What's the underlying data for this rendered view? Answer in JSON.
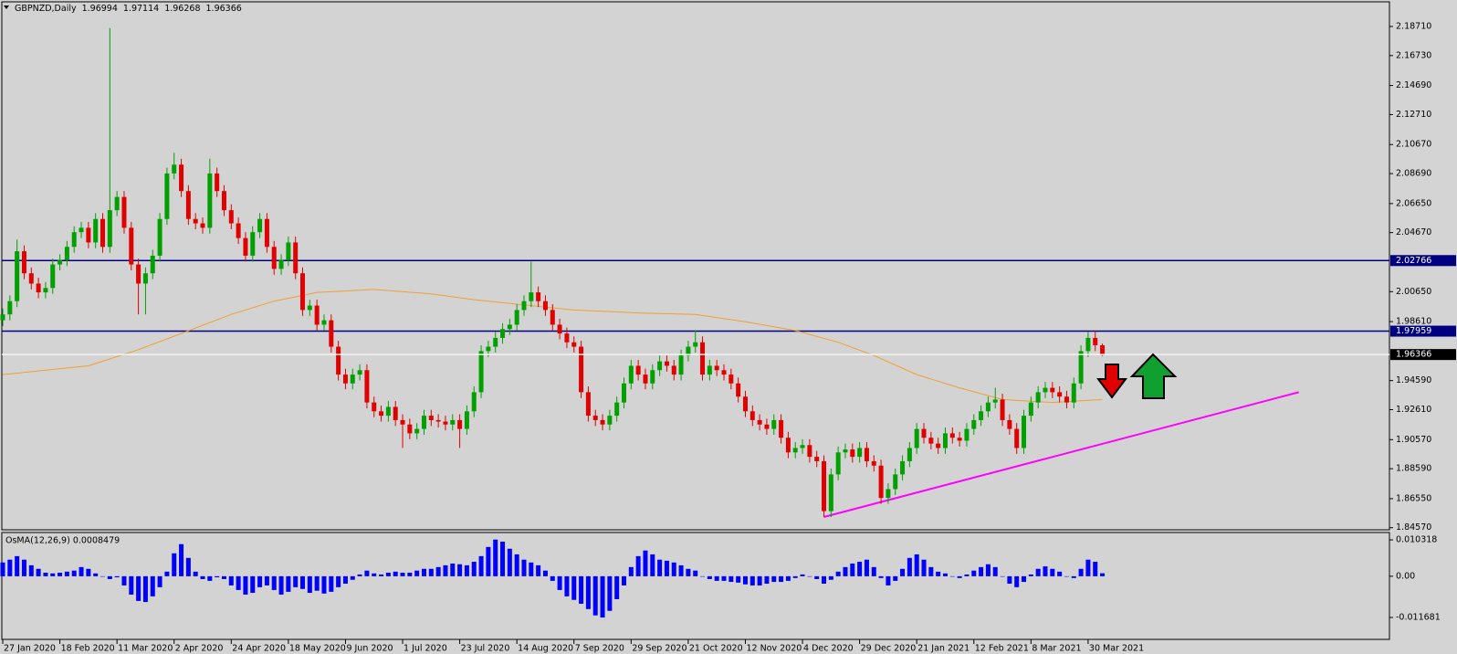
{
  "chart_data": [
    {
      "type": "candlestick",
      "title": "GBPNZD,Daily",
      "open": [
        1.987,
        1.991,
        2.0,
        2.034,
        2.019,
        2.012,
        2.006,
        2.009,
        2.025,
        2.028,
        2.037,
        2.047,
        2.05,
        2.04,
        2.056,
        2.037,
        2.062,
        2.071,
        2.05,
        2.025,
        2.012,
        2.019,
        2.031,
        2.056,
        2.087,
        2.093,
        2.075,
        2.056,
        2.053,
        2.05,
        2.087,
        2.075,
        2.062,
        2.053,
        2.043,
        2.031,
        2.047,
        2.056,
        2.037,
        2.022,
        2.028,
        2.04,
        2.019,
        1.994,
        1.997,
        1.984,
        1.987,
        1.969,
        1.95,
        1.944,
        1.95,
        1.953,
        1.931,
        1.925,
        1.922,
        1.928,
        1.919,
        1.916,
        1.91,
        1.913,
        1.922,
        1.919,
        1.918,
        1.916,
        1.919,
        1.913,
        1.925,
        1.938,
        1.966,
        1.969,
        1.975,
        1.981,
        1.984,
        1.994,
        2.0,
        2.006,
        2.0,
        1.994,
        1.984,
        1.978,
        1.972,
        1.969,
        1.938,
        1.922,
        1.919,
        1.916,
        1.922,
        1.931,
        1.944,
        1.956,
        1.95,
        1.944,
        1.953,
        1.959,
        1.956,
        1.95,
        1.963,
        1.969,
        1.972,
        1.95,
        1.956,
        1.953,
        1.95,
        1.944,
        1.935,
        1.925,
        1.919,
        1.916,
        1.913,
        1.919,
        1.907,
        1.897,
        1.9,
        1.902,
        1.894,
        1.891,
        1.857,
        1.882,
        1.897,
        1.899,
        1.894,
        1.9,
        1.891,
        1.888,
        1.866,
        1.872,
        1.882,
        1.891,
        1.9,
        1.913,
        1.907,
        1.903,
        1.9,
        1.91,
        1.907,
        1.905,
        1.913,
        1.919,
        1.925,
        1.931,
        1.933,
        1.919,
        1.913,
        1.9,
        1.922,
        1.931,
        1.938,
        1.941,
        1.938,
        1.935,
        1.931,
        1.944,
        1.966,
        1.975,
        1.96994
      ],
      "high": [
        1.995,
        2.004,
        2.042,
        2.038,
        2.023,
        2.016,
        2.013,
        2.029,
        2.032,
        2.041,
        2.051,
        2.054,
        2.054,
        2.06,
        2.06,
        2.186,
        2.075,
        2.075,
        2.054,
        2.029,
        2.023,
        2.035,
        2.06,
        2.091,
        2.101,
        2.097,
        2.079,
        2.06,
        2.057,
        2.097,
        2.091,
        2.079,
        2.066,
        2.057,
        2.047,
        2.051,
        2.06,
        2.06,
        2.041,
        2.032,
        2.044,
        2.044,
        2.023,
        2.001,
        2.001,
        1.991,
        1.991,
        1.973,
        1.954,
        1.954,
        1.957,
        1.957,
        1.935,
        1.929,
        1.932,
        1.932,
        1.923,
        1.92,
        1.917,
        1.926,
        1.926,
        1.923,
        1.922,
        1.923,
        1.923,
        1.929,
        1.942,
        1.97,
        1.973,
        1.979,
        1.985,
        1.988,
        1.998,
        2.004,
        2.027,
        2.01,
        2.004,
        1.998,
        1.988,
        1.982,
        1.976,
        1.973,
        1.942,
        1.926,
        1.923,
        1.926,
        1.935,
        1.948,
        1.96,
        1.96,
        1.954,
        1.957,
        1.963,
        1.963,
        1.96,
        1.967,
        1.973,
        1.98,
        1.976,
        1.96,
        1.96,
        1.957,
        1.954,
        1.948,
        1.939,
        1.929,
        1.923,
        1.92,
        1.923,
        1.923,
        1.911,
        1.904,
        1.906,
        1.906,
        1.898,
        1.895,
        1.886,
        1.901,
        1.903,
        1.903,
        1.904,
        1.904,
        1.895,
        1.892,
        1.876,
        1.886,
        1.895,
        1.904,
        1.917,
        1.917,
        1.911,
        1.907,
        1.914,
        1.914,
        1.911,
        1.917,
        1.923,
        1.929,
        1.935,
        1.941,
        1.937,
        1.923,
        1.917,
        1.926,
        1.935,
        1.942,
        1.945,
        1.945,
        1.942,
        1.939,
        1.948,
        1.97,
        1.979,
        1.98,
        1.97114
      ],
      "low": [
        1.983,
        1.987,
        1.996,
        2.015,
        2.008,
        2.002,
        2.002,
        2.005,
        2.021,
        2.024,
        2.033,
        2.043,
        2.036,
        2.036,
        2.033,
        2.033,
        2.058,
        2.046,
        2.021,
        1.991,
        1.991,
        2.015,
        2.027,
        2.052,
        2.083,
        2.071,
        2.052,
        2.049,
        2.046,
        2.046,
        2.071,
        2.058,
        2.049,
        2.039,
        2.027,
        2.027,
        2.043,
        2.033,
        2.018,
        2.018,
        2.024,
        2.015,
        1.99,
        1.99,
        1.98,
        1.98,
        1.965,
        1.946,
        1.94,
        1.94,
        1.946,
        1.927,
        1.921,
        1.918,
        1.918,
        1.915,
        1.9,
        1.906,
        1.906,
        1.909,
        1.915,
        1.914,
        1.912,
        1.912,
        1.9,
        1.909,
        1.921,
        1.934,
        1.962,
        1.965,
        1.971,
        1.977,
        1.98,
        1.99,
        1.996,
        1.996,
        1.99,
        1.98,
        1.974,
        1.968,
        1.965,
        1.934,
        1.918,
        1.915,
        1.912,
        1.912,
        1.918,
        1.927,
        1.94,
        1.946,
        1.94,
        1.94,
        1.949,
        1.952,
        1.946,
        1.946,
        1.959,
        1.965,
        1.946,
        1.946,
        1.949,
        1.946,
        1.94,
        1.931,
        1.921,
        1.915,
        1.912,
        1.909,
        1.909,
        1.903,
        1.893,
        1.893,
        1.896,
        1.89,
        1.887,
        1.853,
        1.853,
        1.878,
        1.893,
        1.89,
        1.89,
        1.887,
        1.884,
        1.862,
        1.862,
        1.868,
        1.878,
        1.887,
        1.896,
        1.903,
        1.899,
        1.896,
        1.896,
        1.903,
        1.901,
        1.901,
        1.909,
        1.915,
        1.921,
        1.927,
        1.915,
        1.909,
        1.896,
        1.896,
        1.918,
        1.927,
        1.934,
        1.934,
        1.931,
        1.927,
        1.927,
        1.94,
        1.962,
        1.966,
        1.96268
      ],
      "close": [
        1.991,
        2.0,
        2.034,
        2.019,
        2.012,
        2.006,
        2.009,
        2.025,
        2.028,
        2.037,
        2.047,
        2.05,
        2.04,
        2.056,
        2.037,
        2.062,
        2.071,
        2.05,
        2.025,
        2.012,
        2.019,
        2.031,
        2.056,
        2.087,
        2.093,
        2.075,
        2.056,
        2.053,
        2.05,
        2.087,
        2.075,
        2.062,
        2.053,
        2.043,
        2.031,
        2.047,
        2.056,
        2.037,
        2.022,
        2.028,
        2.04,
        2.019,
        1.994,
        1.997,
        1.984,
        1.987,
        1.969,
        1.95,
        1.944,
        1.95,
        1.953,
        1.931,
        1.925,
        1.922,
        1.928,
        1.919,
        1.916,
        1.91,
        1.913,
        1.922,
        1.919,
        1.918,
        1.916,
        1.919,
        1.913,
        1.925,
        1.938,
        1.966,
        1.969,
        1.975,
        1.981,
        1.984,
        1.994,
        2.0,
        2.006,
        2.0,
        1.994,
        1.984,
        1.978,
        1.972,
        1.969,
        1.938,
        1.922,
        1.919,
        1.916,
        1.922,
        1.931,
        1.944,
        1.956,
        1.95,
        1.944,
        1.953,
        1.959,
        1.956,
        1.95,
        1.963,
        1.969,
        1.972,
        1.95,
        1.956,
        1.953,
        1.95,
        1.944,
        1.935,
        1.925,
        1.919,
        1.916,
        1.913,
        1.919,
        1.907,
        1.897,
        1.9,
        1.902,
        1.894,
        1.891,
        1.857,
        1.882,
        1.897,
        1.899,
        1.894,
        1.9,
        1.891,
        1.888,
        1.866,
        1.872,
        1.882,
        1.891,
        1.9,
        1.913,
        1.907,
        1.903,
        1.9,
        1.91,
        1.907,
        1.905,
        1.913,
        1.919,
        1.925,
        1.931,
        1.933,
        1.919,
        1.913,
        1.9,
        1.922,
        1.931,
        1.938,
        1.941,
        1.938,
        1.935,
        1.931,
        1.944,
        1.966,
        1.975,
        1.97,
        1.96366
      ],
      "up_color": "#00a000",
      "down_color": "#e00000",
      "wick_color": "#006000",
      "xlim": [
        0,
        194.2
      ],
      "xticks": [
        {
          "value": 0,
          "label": "27 Jan 2020"
        },
        {
          "value": 8,
          "label": "18 Feb 2020"
        },
        {
          "value": 16,
          "label": "11 Mar 2020"
        },
        {
          "value": 24,
          "label": "2 Apr 2020"
        },
        {
          "value": 32,
          "label": "24 Apr 2020"
        },
        {
          "value": 40,
          "label": "18 May 2020"
        },
        {
          "value": 48,
          "label": "9 Jun 2020"
        },
        {
          "value": 56,
          "label": "1 Jul 2020"
        },
        {
          "value": 64,
          "label": "23 Jul 2020"
        },
        {
          "value": 72,
          "label": "14 Aug 2020"
        },
        {
          "value": 80,
          "label": "7 Sep 2020"
        },
        {
          "value": 88,
          "label": "29 Sep 2020"
        },
        {
          "value": 96,
          "label": "21 Oct 2020"
        },
        {
          "value": 104,
          "label": "12 Nov 2020"
        },
        {
          "value": 112,
          "label": "4 Dec 2020"
        },
        {
          "value": 120,
          "label": "29 Dec 2020"
        },
        {
          "value": 128,
          "label": "21 Jan 2021"
        },
        {
          "value": 136,
          "label": "12 Feb 2021"
        },
        {
          "value": 144,
          "label": "8 Mar 2021"
        },
        {
          "value": 152,
          "label": "30 Mar 2021"
        }
      ],
      "ylim": [
        1.8443,
        2.2039
      ],
      "yticks": [
        {
          "value": 2.1871,
          "label": "2.18710"
        },
        {
          "value": 2.1673,
          "label": "2.16730"
        },
        {
          "value": 2.1469,
          "label": "2.14690"
        },
        {
          "value": 2.1271,
          "label": "2.12710"
        },
        {
          "value": 2.1067,
          "label": "2.10670"
        },
        {
          "value": 2.0869,
          "label": "2.08690"
        },
        {
          "value": 2.0665,
          "label": "2.06650"
        },
        {
          "value": 2.0467,
          "label": "2.04670"
        },
        {
          "value": 2.0065,
          "label": "2.00650"
        },
        {
          "value": 1.9861,
          "label": "1.98610"
        },
        {
          "value": 1.9459,
          "label": "1.94590"
        },
        {
          "value": 1.9261,
          "label": "1.92610"
        },
        {
          "value": 1.9057,
          "label": "1.90570"
        },
        {
          "value": 1.8859,
          "label": "1.88590"
        },
        {
          "value": 1.8655,
          "label": "1.86550"
        },
        {
          "value": 1.8457,
          "label": "1.84570"
        }
      ],
      "levels": [
        {
          "value": 2.02766,
          "color": "#000080"
        },
        {
          "value": 1.97959,
          "color": "#000080"
        }
      ],
      "last_price_color": "#f4f4f4",
      "ma": {
        "x": [
          0,
          12,
          19,
          25,
          32,
          38,
          44,
          52,
          60,
          66,
          72,
          80,
          89,
          97,
          104,
          111,
          117,
          122,
          128,
          134,
          140,
          147,
          154
        ],
        "values": [
          1.95,
          1.956,
          1.967,
          1.978,
          1.991,
          2.0,
          2.006,
          2.008,
          2.005,
          2.001,
          1.998,
          1.994,
          1.992,
          1.991,
          1.986,
          1.98,
          1.972,
          1.963,
          1.95,
          1.941,
          1.933,
          1.931,
          1.933
        ],
        "color": "#f0a030"
      },
      "trendline": {
        "x": [
          115,
          181.5
        ],
        "values": [
          1.853,
          1.938
        ],
        "color": "#ff00ff"
      }
    },
    {
      "type": "bar",
      "title": "OsMA(12,26,9) 0.0008479",
      "color": "#0000ff",
      "values": [
        0.0039,
        0.0047,
        0.0057,
        0.0047,
        0.0031,
        0.0021,
        0.001,
        0.0008,
        0.001,
        0.0013,
        0.0016,
        0.0026,
        0.0021,
        0.0008,
        0,
        -0.0008,
        -0.0003,
        -0.0026,
        -0.0052,
        -0.007,
        -0.0073,
        -0.0057,
        -0.0031,
        0.0013,
        0.0065,
        0.0091,
        0.0052,
        0.0013,
        -0.0008,
        -0.0013,
        -0.0003,
        -0.0008,
        -0.0026,
        -0.0039,
        -0.0052,
        -0.0047,
        -0.0031,
        -0.0026,
        -0.0039,
        -0.0052,
        -0.0044,
        -0.0031,
        -0.0036,
        -0.0047,
        -0.0041,
        -0.0049,
        -0.0044,
        -0.0031,
        -0.0021,
        -0.001,
        0.0005,
        0.0016,
        0.0008,
        0.0005,
        0.001,
        0.0013,
        0.001,
        0.001,
        0.0016,
        0.0021,
        0.0021,
        0.0026,
        0.0031,
        0.0036,
        0.0034,
        0.0031,
        0.0041,
        0.0057,
        0.0083,
        0.0104,
        0.0098,
        0.0078,
        0.0062,
        0.0047,
        0.0039,
        0.0031,
        0.0016,
        -0.0013,
        -0.0039,
        -0.0057,
        -0.0067,
        -0.0078,
        -0.0093,
        -0.0111,
        -0.0117,
        -0.0098,
        -0.0065,
        -0.0026,
        0.0026,
        0.0057,
        0.0073,
        0.0062,
        0.0047,
        0.0044,
        0.0039,
        0.0031,
        0.0021,
        0.0016,
        0,
        -0.0008,
        -0.0013,
        -0.0013,
        -0.0016,
        -0.0018,
        -0.0023,
        -0.0026,
        -0.0026,
        -0.0021,
        -0.0016,
        -0.0016,
        -0.0013,
        -0.0005,
        0.0005,
        0,
        -0.0008,
        -0.0021,
        -0.001,
        0.0013,
        0.0026,
        0.0036,
        0.0041,
        0.0047,
        0.0026,
        -0.0005,
        -0.0026,
        -0.0013,
        0.0021,
        0.0052,
        0.0062,
        0.0047,
        0.0026,
        0.0013,
        0.0008,
        0,
        -0.0005,
        0.0005,
        0.0016,
        0.0026,
        0.0034,
        0.0026,
        0,
        -0.0021,
        -0.0031,
        -0.0016,
        0.0005,
        0.0021,
        0.0028,
        0.0021,
        0.0013,
        0,
        -0.0005,
        0.0021,
        0.0047,
        0.0041,
        0.0008479
      ],
      "xlim": [
        0,
        194.2
      ],
      "ylim": [
        -0.0179,
        0.0124
      ],
      "yticks": [
        0.010318,
        {
          "value": 0,
          "label": "0.00"
        },
        -0.011681
      ]
    }
  ]
}
